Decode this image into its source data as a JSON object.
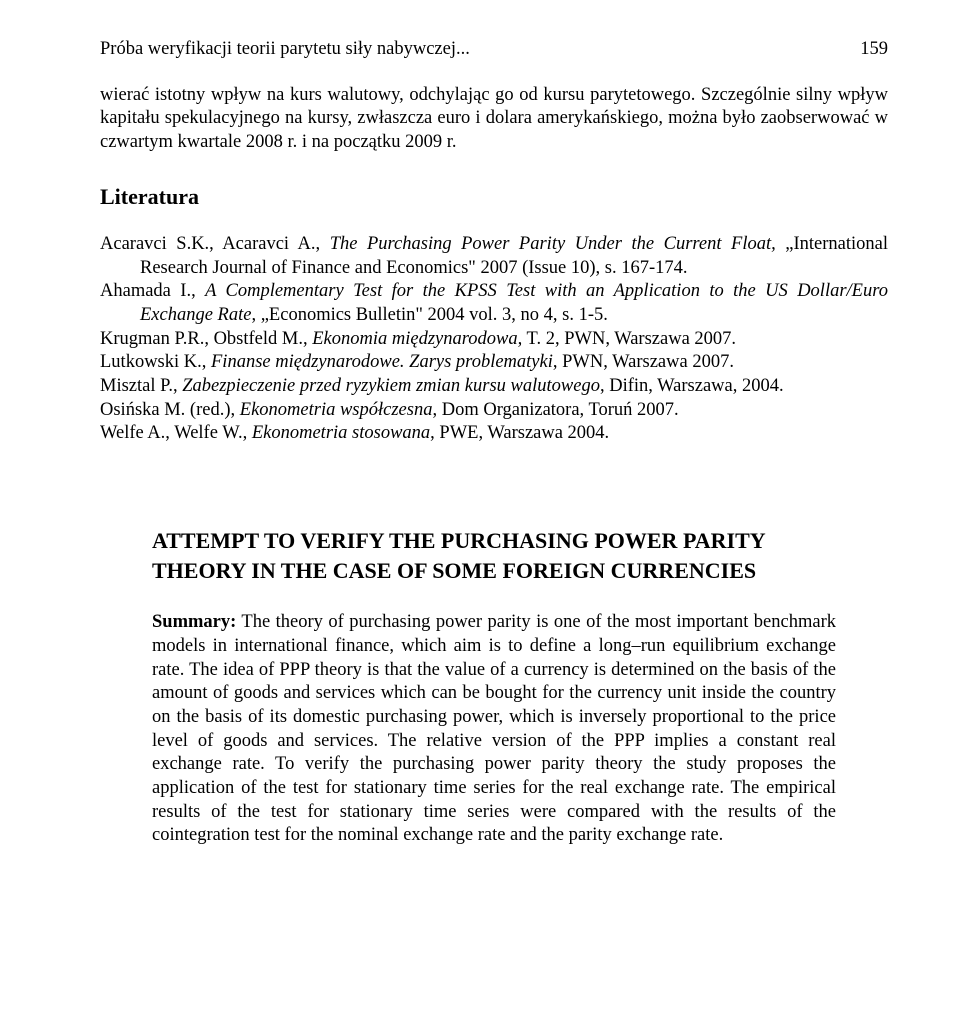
{
  "header": {
    "running_title": "Próba weryfikacji teorii parytetu siły nabywczej...",
    "page_number": "159"
  },
  "body_paragraph": "wierać istotny wpływ na kurs walutowy, odchylając go od kursu parytetowego. Szczególnie silny wpływ kapitału spekulacyjnego na kursy, zwłaszcza euro i dolara amerykańskiego, można było zaobserwować w czwartym kwartale 2008 r. i na początku 2009 r.",
  "literature_heading": "Literatura",
  "references": [
    {
      "pre": "Acaravci S.K., Acaravci A., ",
      "ital": "The Purchasing Power Parity Under the Current Float,",
      "post": " „International Research Journal of Finance and Economics\" 2007 (Issue 10), s. 167-174."
    },
    {
      "pre": "Ahamada I., ",
      "ital": "A Complementary Test for the KPSS Test with an Application to the US Dollar/Euro Exchange Rate",
      "post": ", „Economics Bulletin\" 2004 vol. 3, no 4, s. 1-5."
    },
    {
      "pre": "Krugman P.R., Obstfeld M., ",
      "ital": "Ekonomia międzynarodowa,",
      "post": " T. 2, PWN, Warszawa 2007."
    },
    {
      "pre": "Lutkowski K., ",
      "ital": "Finanse międzynarodowe. Zarys problematyki",
      "post": ", PWN, Warszawa 2007."
    },
    {
      "pre": "Misztal P., ",
      "ital": "Zabezpieczenie przed ryzykiem zmian kursu walutowego",
      "post": ", Difin, Warszawa, 2004."
    },
    {
      "pre": "Osińska M. (red.), ",
      "ital": "Ekonometria współczesna",
      "post": ", Dom Organizatora, Toruń 2007."
    },
    {
      "pre": "Welfe A., Welfe W., ",
      "ital": "Ekonometria stosowana",
      "post": ", PWE, Warszawa 2004."
    }
  ],
  "article_title": "ATTEMPT TO VERIFY THE PURCHASING POWER PARITY THEORY IN THE CASE OF SOME FOREIGN CURRENCIES",
  "summary_label": "Summary:",
  "summary_text": " The theory of purchasing power parity is one of the most important benchmark models in international finance, which aim is to define a long–run equilibrium exchange rate. The idea of PPP theory is that the value of a currency is determined on the basis of the amount of goods and services which can be bought for the currency unit inside the country on the basis of its domestic purchasing power, which is inversely proportional to the price level of goods and services. The relative version of the PPP implies a constant real exchange rate. To verify the purchasing power parity theory the study proposes the application of the test for stationary time series for the real exchange rate. The empirical results of the test for stationary time series were compared with the results of the cointegration test for the nominal exchange rate and the parity exchange rate."
}
